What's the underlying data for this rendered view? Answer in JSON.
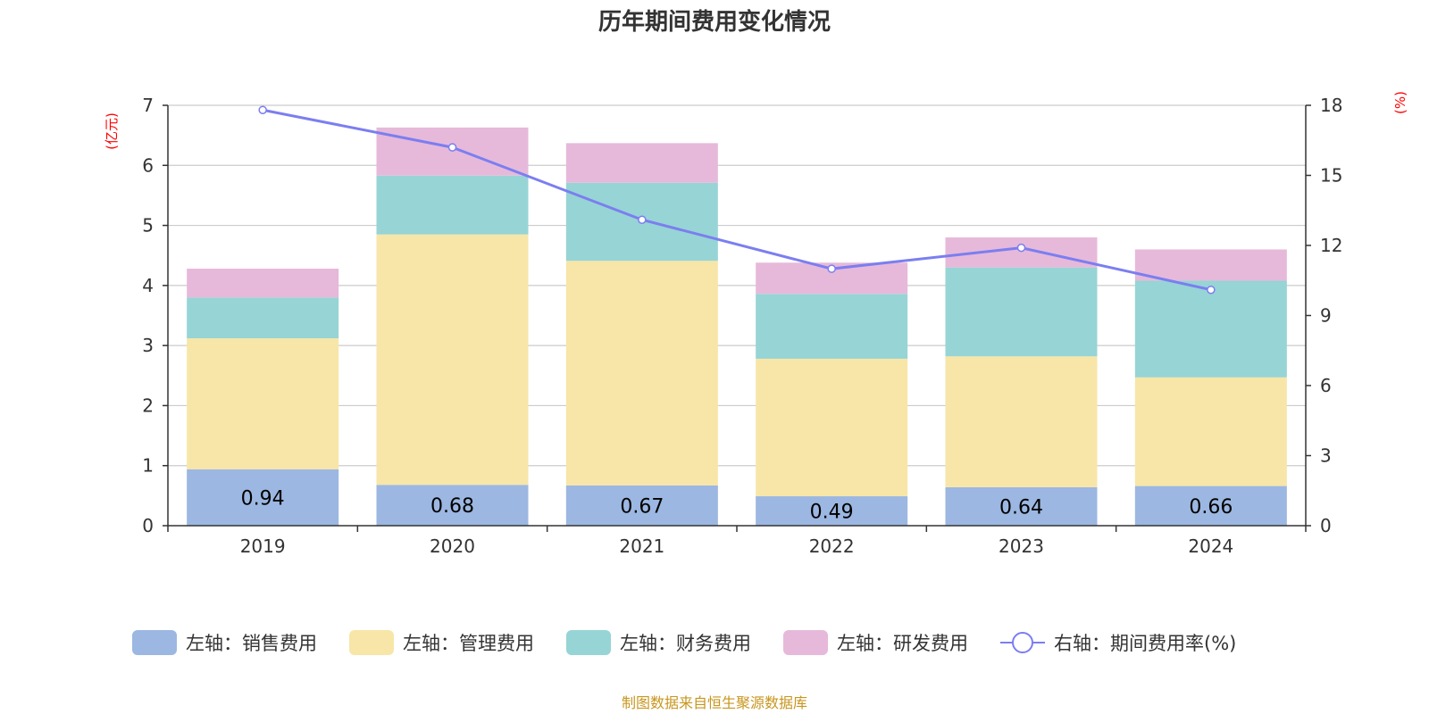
{
  "chart_data": {
    "type": "bar",
    "stacked": true,
    "title": "历年期间费用变化情况",
    "categories": [
      "2019",
      "2020",
      "2021",
      "2022",
      "2023",
      "2024"
    ],
    "left_axis": {
      "unit_label": "(亿元)",
      "ylim": [
        0,
        7
      ],
      "ticks": [
        "0",
        "1",
        "2",
        "3",
        "4",
        "5",
        "6",
        "7"
      ]
    },
    "right_axis": {
      "unit_label": "(%)",
      "ylim": [
        0,
        18
      ],
      "ticks": [
        "0",
        "3",
        "6",
        "9",
        "12",
        "15",
        "18"
      ]
    },
    "series": [
      {
        "name": "左轴：销售费用",
        "axis": "left",
        "type": "bar",
        "color": "#9cb7e1",
        "values": [
          0.94,
          0.68,
          0.67,
          0.49,
          0.64,
          0.66
        ],
        "labels": [
          "0.94",
          "0.68",
          "0.67",
          "0.49",
          "0.64",
          "0.66"
        ]
      },
      {
        "name": "左轴：管理费用",
        "axis": "left",
        "type": "bar",
        "color": "#f7e6a8",
        "values": [
          2.18,
          4.17,
          3.74,
          2.29,
          2.18,
          1.81
        ]
      },
      {
        "name": "左轴：财务费用",
        "axis": "left",
        "type": "bar",
        "color": "#97d4d5",
        "values": [
          0.68,
          0.98,
          1.3,
          1.08,
          1.48,
          1.61
        ]
      },
      {
        "name": "左轴：研发费用",
        "axis": "left",
        "type": "bar",
        "color": "#e6b9da",
        "values": [
          0.48,
          0.8,
          0.66,
          0.52,
          0.5,
          0.52
        ]
      },
      {
        "name": "右轴：期间费用率(%)",
        "axis": "right",
        "type": "line",
        "color": "#7b7ef0",
        "values": [
          17.8,
          16.2,
          13.1,
          11.0,
          11.9,
          10.1
        ]
      }
    ],
    "legend_position": "bottom",
    "grid": true
  },
  "source_note": "制图数据来自恒生聚源数据库",
  "colors": {
    "unit_label": "#ff0000",
    "source": "#c8961e",
    "axis": "#333333",
    "grid": "#cccccc"
  }
}
